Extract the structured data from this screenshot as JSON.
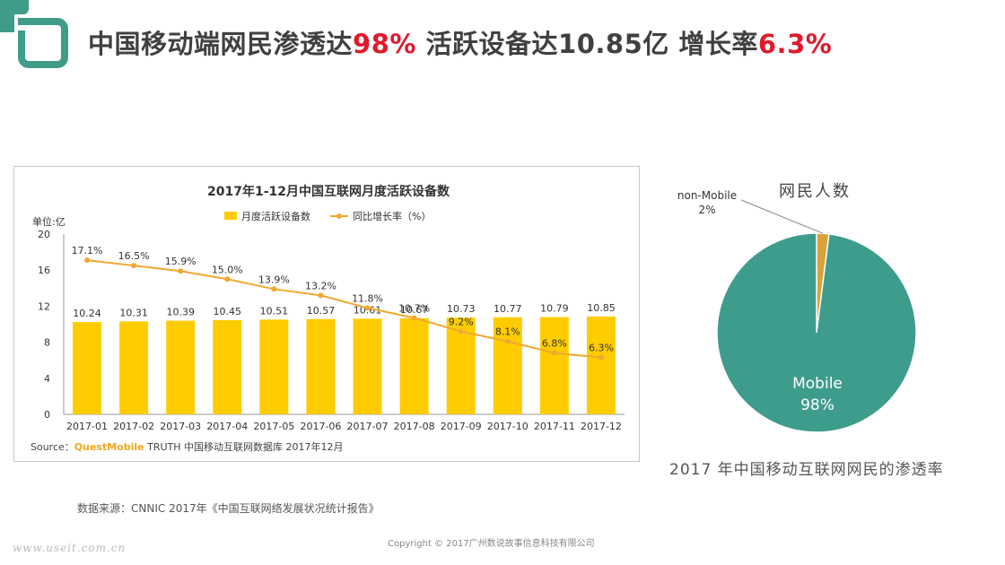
{
  "headline": {
    "part1": "中国移动端网民渗透达",
    "hl1": "98%",
    "part2": " 活跃设备达10.85亿 增长率",
    "hl2": "6.3%"
  },
  "colors": {
    "teal": "#3e9c89",
    "bar": "#ffcc00",
    "line": "#f0a830",
    "pie_main": "#3e9c8c",
    "pie_minor": "#d9a23a",
    "accent_red": "#e0192c"
  },
  "chart_data": [
    {
      "type": "bar",
      "title": "2017年1-12月中国互联网月度活跃设备数",
      "ylabel": "单位:亿",
      "ylim": [
        0,
        20
      ],
      "yticks": [
        "0",
        "4",
        "8",
        "12",
        "16",
        "20"
      ],
      "categories": [
        "2017-01",
        "2017-02",
        "2017-03",
        "2017-04",
        "2017-05",
        "2017-06",
        "2017-07",
        "2017-08",
        "2017-09",
        "2017-10",
        "2017-11",
        "2017-12"
      ],
      "series": [
        {
          "name": "月度活跃设备数",
          "kind": "bar",
          "values": [
            10.24,
            10.31,
            10.39,
            10.45,
            10.51,
            10.57,
            10.61,
            10.67,
            10.73,
            10.77,
            10.79,
            10.85
          ],
          "labels": [
            "10.24",
            "10.31",
            "10.39",
            "10.45",
            "10.51",
            "10.57",
            "10.61",
            "10.67",
            "10.73",
            "10.77",
            "10.79",
            "10.85"
          ]
        },
        {
          "name": "同比增长率（%）",
          "kind": "line",
          "values": [
            17.1,
            16.5,
            15.9,
            15.0,
            13.9,
            13.2,
            11.8,
            10.7,
            9.2,
            8.1,
            6.8,
            6.3
          ],
          "labels": [
            "17.1%",
            "16.5%",
            "15.9%",
            "15.0%",
            "13.9%",
            "13.2%",
            "11.8%",
            "10.7%",
            "9.2%",
            "8.1%",
            "6.8%",
            "6.3%"
          ]
        }
      ],
      "source_prefix": "Source：",
      "source_brand": "QuestMobile",
      "source_suffix": " TRUTH 中国移动互联网数据库 2017年12月"
    },
    {
      "type": "pie",
      "title": "网民人数",
      "slices": [
        {
          "name": "Mobile",
          "value": 98,
          "label": "98%"
        },
        {
          "name": "non-Mobile",
          "value": 2,
          "label": "2%"
        }
      ]
    }
  ],
  "pie_caption": "2017 年中国移动互联网网民的渗透率",
  "data_source": "数据来源：CNNIC 2017年《中国互联网络发展状况统计报告》",
  "copyright": "Copyright © 2017广州数说故事信息科技有限公司",
  "watermark": "www.useit.com.cn"
}
